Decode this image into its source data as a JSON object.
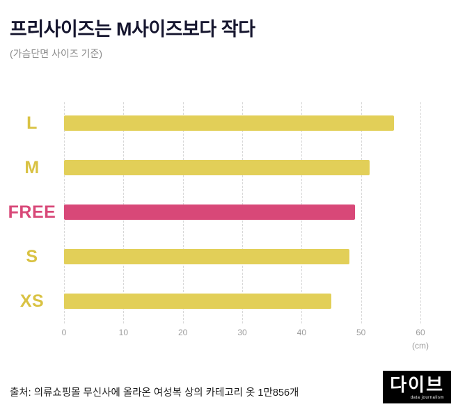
{
  "header": {
    "title": "프리사이즈는 M사이즈보다 작다",
    "subtitle": "(가슴단면 사이즈 기준)"
  },
  "chart_data": {
    "type": "bar",
    "orientation": "horizontal",
    "title": "프리사이즈는 M사이즈보다 작다",
    "subtitle": "(가슴단면 사이즈 기준)",
    "categories": [
      "L",
      "M",
      "FREE",
      "S",
      "XS"
    ],
    "values": [
      55.5,
      51.5,
      49,
      48,
      45
    ],
    "highlight_category": "FREE",
    "bar_color": "#e2cf58",
    "highlight_color": "#d84878",
    "label_color": "#d9c243",
    "highlight_label_color": "#d84878",
    "xlim": [
      0,
      60
    ],
    "xticks": [
      0,
      10,
      20,
      30,
      40,
      50,
      60
    ],
    "unit": "(cm)",
    "grid": "dashed-vertical",
    "legend": "none"
  },
  "footer": {
    "source": "출처: 의류쇼핑몰 무신사에 올라온 여성복 상의 카테고리 옷 1만856개",
    "logo": {
      "name": "다이브",
      "tagline": "data journalism"
    }
  }
}
